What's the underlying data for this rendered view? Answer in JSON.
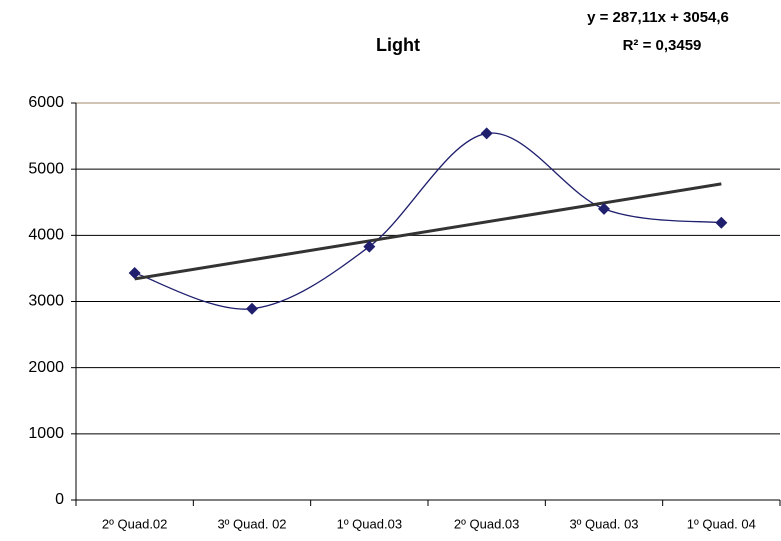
{
  "chart_data": {
    "type": "line",
    "title": "Light",
    "annotations": [
      "y = 287,11x + 3054,6",
      "R² = 0,3459"
    ],
    "categories": [
      "2º Quad.02",
      "3º Quad. 02",
      "1º Quad.03",
      "2º Quad.03",
      "3º Quad. 03",
      "1º Quad. 04"
    ],
    "values": [
      3430,
      2890,
      3830,
      5540,
      4400,
      4190
    ],
    "color": "#1f1f6e",
    "smooth": true,
    "trendline": {
      "slope": 287.11,
      "intercept": 3054.6,
      "color": "#333333"
    },
    "ylim": [
      0,
      6000
    ],
    "yticks": [
      0,
      1000,
      2000,
      3000,
      4000,
      5000,
      6000
    ],
    "grid": true
  }
}
